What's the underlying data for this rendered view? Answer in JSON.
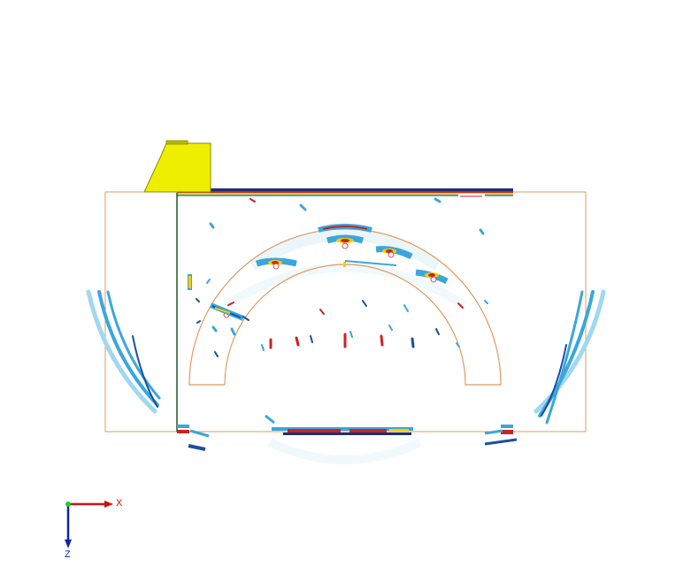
{
  "axes": {
    "x_label": "X",
    "z_label": "Z",
    "x_color": "#cc1111",
    "y_color": "#22cc22",
    "z_color": "#1122aa"
  },
  "colors": {
    "outline": "#e09a5c",
    "probe": "#eeee00",
    "probe_edge": "#8a8a00",
    "signal_weak": "#9fd8f0",
    "signal_mid": "#3ba6dc",
    "signal_strong": "#1a4fa0",
    "signal_hot": "#cc2222",
    "signal_warm": "#ffcc00",
    "back_wall": "#1b2f7a",
    "dark_line": "#1a5a2a"
  },
  "icons": {
    "probe": "ultrasonic-probe-icon",
    "axis_triad": "axis-triad-icon"
  }
}
